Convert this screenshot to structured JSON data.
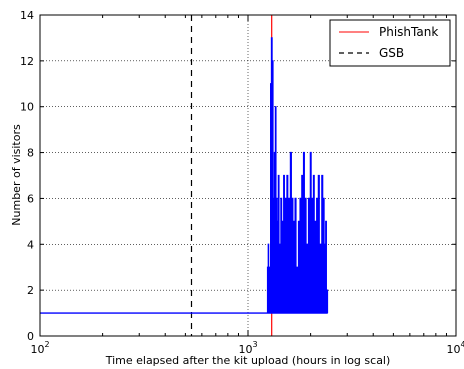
{
  "chart_data": {
    "type": "line",
    "title": "",
    "xlabel": "Time elapsed after the kit upload (hours in log scal)",
    "ylabel": "Number of visitors",
    "xscale": "log",
    "xlim": [
      100,
      10000
    ],
    "ylim": [
      0,
      14
    ],
    "x_tick_labels": [
      {
        "base": "10",
        "exp": "2"
      },
      {
        "base": "10",
        "exp": "3"
      },
      {
        "base": "10",
        "exp": "4"
      }
    ],
    "y_ticks": [
      0,
      2,
      4,
      6,
      8,
      10,
      12,
      14
    ],
    "grid": "vertical dotted at x-decades, horizontal dotted at y-ticks",
    "legend_position": "top-right",
    "legend": [
      {
        "label": "PhishTank",
        "color": "#ff0000",
        "style": "solid"
      },
      {
        "label": "GSB",
        "color": "#000000",
        "style": "dashed"
      }
    ],
    "vlines": [
      {
        "series": "PhishTank",
        "x": 1300
      },
      {
        "series": "GSB",
        "x": 535
      }
    ],
    "series": [
      {
        "color": "#0000ff",
        "points": [
          [
            100,
            1
          ],
          [
            1240,
            1
          ],
          [
            1242,
            3
          ],
          [
            1244,
            1
          ],
          [
            1252,
            4
          ],
          [
            1256,
            1
          ],
          [
            1265,
            3
          ],
          [
            1270,
            1
          ],
          [
            1285,
            11
          ],
          [
            1292,
            1
          ],
          [
            1297,
            13
          ],
          [
            1305,
            1
          ],
          [
            1310,
            12
          ],
          [
            1318,
            1
          ],
          [
            1325,
            6
          ],
          [
            1332,
            1
          ],
          [
            1340,
            8
          ],
          [
            1348,
            1
          ],
          [
            1355,
            10
          ],
          [
            1362,
            1
          ],
          [
            1370,
            6
          ],
          [
            1378,
            1
          ],
          [
            1385,
            5
          ],
          [
            1392,
            1
          ],
          [
            1400,
            7
          ],
          [
            1408,
            1
          ],
          [
            1420,
            4
          ],
          [
            1428,
            1
          ],
          [
            1440,
            6
          ],
          [
            1450,
            1
          ],
          [
            1460,
            5
          ],
          [
            1470,
            1
          ],
          [
            1485,
            7
          ],
          [
            1495,
            1
          ],
          [
            1510,
            6
          ],
          [
            1520,
            1
          ],
          [
            1540,
            7
          ],
          [
            1552,
            1
          ],
          [
            1570,
            6
          ],
          [
            1580,
            1
          ],
          [
            1600,
            8
          ],
          [
            1615,
            1
          ],
          [
            1630,
            6
          ],
          [
            1642,
            1
          ],
          [
            1655,
            5
          ],
          [
            1668,
            1
          ],
          [
            1685,
            6
          ],
          [
            1700,
            1
          ],
          [
            1720,
            3
          ],
          [
            1735,
            1
          ],
          [
            1750,
            5
          ],
          [
            1765,
            1
          ],
          [
            1780,
            6
          ],
          [
            1795,
            1
          ],
          [
            1815,
            7
          ],
          [
            1830,
            1
          ],
          [
            1850,
            8
          ],
          [
            1865,
            1
          ],
          [
            1885,
            6
          ],
          [
            1900,
            1
          ],
          [
            1920,
            4
          ],
          [
            1935,
            1
          ],
          [
            1955,
            6
          ],
          [
            1970,
            1
          ],
          [
            1995,
            8
          ],
          [
            2010,
            1
          ],
          [
            2030,
            6
          ],
          [
            2045,
            1
          ],
          [
            2065,
            7
          ],
          [
            2080,
            1
          ],
          [
            2100,
            5
          ],
          [
            2120,
            1
          ],
          [
            2140,
            6
          ],
          [
            2160,
            1
          ],
          [
            2180,
            7
          ],
          [
            2200,
            1
          ],
          [
            2220,
            4
          ],
          [
            2240,
            1
          ],
          [
            2265,
            7
          ],
          [
            2285,
            1
          ],
          [
            2300,
            6
          ],
          [
            2320,
            1
          ],
          [
            2335,
            4
          ],
          [
            2350,
            1
          ],
          [
            2365,
            5
          ],
          [
            2380,
            1
          ],
          [
            2400,
            2
          ],
          [
            2410,
            1
          ]
        ]
      }
    ]
  }
}
